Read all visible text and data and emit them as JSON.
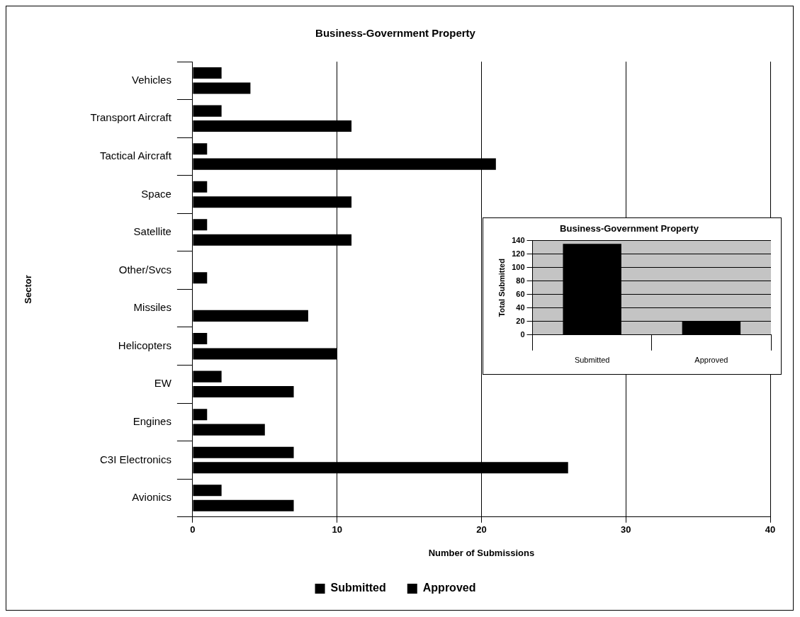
{
  "chart_data": [
    {
      "type": "bar",
      "orientation": "horizontal",
      "title": "Business-Government Property",
      "xlabel": "Number of Submissions",
      "ylabel": "Sector",
      "categories": [
        "Vehicles",
        "Transport Aircraft",
        "Tactical Aircraft",
        "Space",
        "Satellite",
        "Other/Svcs",
        "Missiles",
        "Helicopters",
        "EW",
        "Engines",
        "C3I Electronics",
        "Avionics"
      ],
      "series": [
        {
          "name": "Submitted",
          "color": "#000000",
          "values": [
            4,
            11,
            21,
            11,
            11,
            1,
            8,
            10,
            7,
            5,
            26,
            7
          ]
        },
        {
          "name": "Approved",
          "color": "#000000",
          "values": [
            2,
            2,
            1,
            1,
            1,
            0,
            0,
            1,
            2,
            1,
            7,
            2
          ]
        }
      ],
      "xlim": [
        0,
        40
      ],
      "xticks": [
        0,
        10,
        20,
        30,
        40
      ],
      "grid": "x",
      "legend": "bottom"
    },
    {
      "type": "bar",
      "title": "Business-Government Property",
      "ylabel": "Total Submitted",
      "categories": [
        "Submitted",
        "Approved"
      ],
      "values": [
        135,
        20
      ],
      "color": "#000000",
      "ylim": [
        0,
        140
      ],
      "yticks": [
        0,
        20,
        40,
        60,
        80,
        100,
        120,
        140
      ],
      "grid": "y"
    }
  ]
}
